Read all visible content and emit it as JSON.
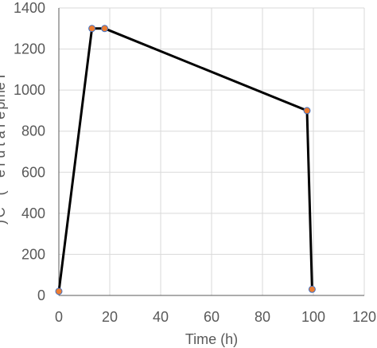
{
  "chart_data": {
    "type": "line",
    "title": "",
    "xlabel": "Time (h)",
    "ylabel": "Temperature (°C)",
    "xlim": [
      0,
      120
    ],
    "ylim": [
      0,
      1400
    ],
    "x_ticks": [
      "0",
      "20",
      "40",
      "60",
      "80",
      "100",
      "120"
    ],
    "y_ticks": [
      "0",
      "200",
      "400",
      "600",
      "800",
      "1000",
      "1200",
      "1400"
    ],
    "grid": true,
    "legend": "none",
    "series": [
      {
        "x": [
          0,
          13,
          18,
          97.5,
          99.5
        ],
        "y": [
          20,
          1300,
          1300,
          900,
          30
        ],
        "line_color": "#000000",
        "marker_color": "#ED7D31",
        "marker_edge": "#4472C4"
      }
    ]
  }
}
